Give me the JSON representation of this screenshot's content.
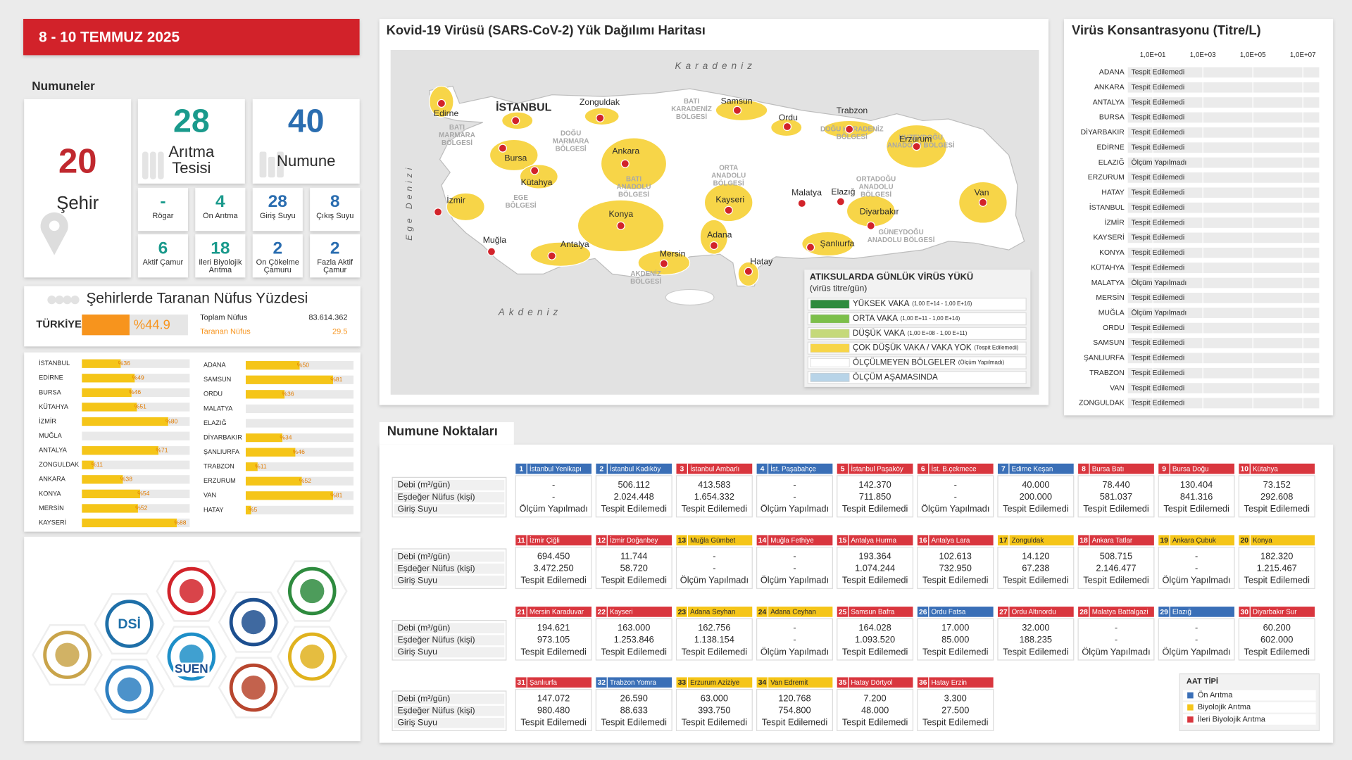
{
  "header": {
    "date": "8 - 10 TEMMUZ 2025"
  },
  "samples": {
    "title": "Numuneler",
    "city_count": 20,
    "city_label": "Şehir",
    "facility_count": 28,
    "facility_label": "Arıtma Tesisi",
    "sample_count": 40,
    "sample_label": "Numune",
    "breakdown": [
      {
        "value": "-",
        "label": "Rögar",
        "color": "#1a9a8c"
      },
      {
        "value": 4,
        "label": "Ön Arıtma",
        "color": "#1a9a8c"
      },
      {
        "value": 28,
        "label": "Giriş Suyu",
        "color": "#2a6db0"
      },
      {
        "value": 8,
        "label": "Çıkış Suyu",
        "color": "#2a6db0"
      },
      {
        "value": 6,
        "label": "Aktif Çamur",
        "color": "#1a9a8c"
      },
      {
        "value": 18,
        "label": "İleri Biyolojik Arıtma",
        "color": "#1a9a8c"
      },
      {
        "value": 2,
        "label": "Ön Çökelme Çamuru",
        "color": "#2a6db0"
      },
      {
        "value": 2,
        "label": "Fazla Aktif Çamur",
        "color": "#2a6db0"
      }
    ]
  },
  "population": {
    "title": "Şehirlerde Taranan Nüfus Yüzdesi",
    "country": "TÜRKİYE",
    "percent": 44.9,
    "percent_label": "%44.9",
    "total_label": "Toplam Nüfus",
    "total": "83.614.362",
    "screened_label": "Taranan Nüfus",
    "screened": "29.5"
  },
  "chart_data": [
    {
      "type": "bar",
      "orientation": "horizontal",
      "color": "#f5c518",
      "xlim": [
        0,
        100
      ],
      "categories": [
        "İSTANBUL",
        "EDİRNE",
        "BURSA",
        "KÜTAHYA",
        "İZMİR",
        "MUĞLA",
        "ANTALYA",
        "ZONGULDAK",
        "ANKARA",
        "KONYA",
        "MERSİN",
        "KAYSERİ"
      ],
      "values": [
        36,
        49,
        46,
        51,
        80,
        null,
        71,
        11,
        38,
        54,
        52,
        88
      ],
      "value_labels": [
        "%36",
        "%49",
        "%46",
        "%51",
        "%80",
        null,
        "%71",
        "%11",
        "%38",
        "%54",
        "%52",
        "%88"
      ]
    },
    {
      "type": "bar",
      "orientation": "horizontal",
      "color": "#f5c518",
      "xlim": [
        0,
        100
      ],
      "categories": [
        "ADANA",
        "SAMSUN",
        "ORDU",
        "MALATYA",
        "ELAZIĞ",
        "DİYARBAKIR",
        "ŞANLIURFA",
        "TRABZON",
        "ERZURUM",
        "VAN",
        "HATAY"
      ],
      "values": [
        50,
        81,
        36,
        null,
        null,
        34,
        46,
        11,
        52,
        81,
        5
      ],
      "value_labels": [
        "%50",
        "%81",
        "%36",
        null,
        null,
        "%34",
        "%46",
        "%11",
        "%52",
        "%81",
        "%5"
      ]
    },
    {
      "type": "status",
      "title": "Virüs Konsantrasyonu (Titre/L)",
      "log_scale": true,
      "xlim": [
        1,
        100000000
      ],
      "grid": true,
      "xticks": [
        {
          "value": 10,
          "label": "1,0E+01"
        },
        {
          "value": 1000,
          "label": "1,0E+03"
        },
        {
          "value": 100000,
          "label": "1,0E+05"
        },
        {
          "value": 10000000,
          "label": "1,0E+07"
        }
      ],
      "categories": [
        "ADANA",
        "ANKARA",
        "ANTALYA",
        "BURSA",
        "DİYARBAKIR",
        "EDİRNE",
        "ELAZIĞ",
        "ERZURUM",
        "HATAY",
        "İSTANBUL",
        "İZMİR",
        "KAYSERİ",
        "KONYA",
        "KÜTAHYA",
        "MALATYA",
        "MERSİN",
        "MUĞLA",
        "ORDU",
        "SAMSUN",
        "ŞANLIURFA",
        "TRABZON",
        "VAN",
        "ZONGULDAK"
      ],
      "statuses": [
        "Tespit Edilemedi",
        "Tespit Edilemedi",
        "Tespit Edilemedi",
        "Tespit Edilemedi",
        "Tespit Edilemedi",
        "Tespit Edilemedi",
        "Ölçüm Yapılmadı",
        "Tespit Edilemedi",
        "Tespit Edilemedi",
        "Tespit Edilemedi",
        "Tespit Edilemedi",
        "Tespit Edilemedi",
        "Tespit Edilemedi",
        "Tespit Edilemedi",
        "Ölçüm Yapılmadı",
        "Tespit Edilemedi",
        "Ölçüm Yapılmadı",
        "Tespit Edilemedi",
        "Tespit Edilemedi",
        "Tespit Edilemedi",
        "Tespit Edilemedi",
        "Tespit Edilemedi",
        "Tespit Edilemedi"
      ]
    }
  ],
  "map": {
    "title": "Kovid-19 Virüsü (SARS-CoV-2) Yük Dağılımı Haritası",
    "seas": [
      "Karadeniz",
      "Ege Denizi",
      "Akdeniz"
    ],
    "cities": [
      "Edirne",
      "İSTANBUL",
      "Zonguldak",
      "Samsun",
      "Ordu",
      "Trabzon",
      "Erzurum",
      "Bursa",
      "Kütahya",
      "Ankara",
      "İzmir",
      "Konya",
      "Kayseri",
      "Malatya",
      "Elazığ",
      "Van",
      "Diyarbakır",
      "Muğla",
      "Antalya",
      "Mersin",
      "Adana",
      "Hatay",
      "Şanlıurfa"
    ],
    "regions": [
      [
        "BATI",
        "MARMARA",
        "BÖLGESİ"
      ],
      [
        "DOĞU",
        "MARMARA",
        "BÖLGESİ"
      ],
      [
        "BATI",
        "KARADENİZ",
        "BÖLGESİ"
      ],
      [
        "DOĞU KARADENİZ",
        "BÖLGESİ"
      ],
      [
        "KUZEYDOĞU",
        "ANADOLU BÖLGESİ"
      ],
      [
        "EGE",
        "BÖLGESİ"
      ],
      [
        "BATI",
        "ANADOLU",
        "BÖLGESİ"
      ],
      [
        "ORTA",
        "ANADOLU",
        "BÖLGESİ"
      ],
      [
        "ORTADOĞU",
        "ANADOLU",
        "BÖLGESİ"
      ],
      [
        "GÜNEYDOĞU",
        "ANADOLU BÖLGESİ"
      ],
      [
        "AKDENİZ",
        "BÖLGESİ"
      ]
    ],
    "legend": {
      "title": "ATIKSULARDA GÜNLÜK VİRÜS YÜKÜ",
      "subtitle": "(virüs titre/gün)",
      "items": [
        {
          "name": "YÜKSEK VAKA",
          "detail": "(1,00 E+14 - 1,00 E+16)",
          "color": "#2e8b3e"
        },
        {
          "name": "ORTA VAKA",
          "detail": "(1,00 E+11 - 1,00 E+14)",
          "color": "#7cbf4a"
        },
        {
          "name": "DÜŞÜK VAKA",
          "detail": "(1,00 E+08 - 1,00 E+11)",
          "color": "#c5d97a"
        },
        {
          "name": "ÇOK DÜŞÜK VAKA / VAKA YOK",
          "detail": "(Tespit Edilemedi)",
          "color": "#f7d548"
        },
        {
          "name": "ÖLÇÜLMEYEN BÖLGELER",
          "detail": "(Ölçüm Yapılmadı)",
          "color": "#ffffff"
        },
        {
          "name": "ÖLÇÜM AŞAMASINDA",
          "detail": null,
          "color": "#b8d4e8"
        }
      ]
    }
  },
  "points": {
    "title": "Numune Noktaları",
    "row_labels": [
      "Debi (m³/gün)",
      "Eşdeğer Nüfus (kişi)",
      "Giriş Suyu"
    ],
    "items": [
      {
        "no": 1,
        "name": "İstanbul Yenikapı",
        "color": "#3a6fb7",
        "flow": "-",
        "population": "-",
        "result": "Ölçüm Yapılmadı"
      },
      {
        "no": 2,
        "name": "İstanbul Kadıköy",
        "color": "#3a6fb7",
        "flow": "506.112",
        "population": "2.024.448",
        "result": "Tespit Edilemedi"
      },
      {
        "no": 3,
        "name": "İstanbul Ambarlı",
        "color": "#d9363e",
        "flow": "413.583",
        "population": "1.654.332",
        "result": "Tespit Edilemedi"
      },
      {
        "no": 4,
        "name": "İst. Paşabahçe",
        "color": "#3a6fb7",
        "flow": "-",
        "population": "-",
        "result": "Ölçüm Yapılmadı"
      },
      {
        "no": 5,
        "name": "İstanbul Paşaköy",
        "color": "#d9363e",
        "flow": "142.370",
        "population": "711.850",
        "result": "Tespit Edilemedi"
      },
      {
        "no": 6,
        "name": "İst. B.çekmece",
        "color": "#d9363e",
        "flow": "-",
        "population": "-",
        "result": "Ölçüm Yapılmadı"
      },
      {
        "no": 7,
        "name": "Edirne Keşan",
        "color": "#3a6fb7",
        "flow": "40.000",
        "population": "200.000",
        "result": "Tespit Edilemedi"
      },
      {
        "no": 8,
        "name": "Bursa Batı",
        "color": "#d9363e",
        "flow": "78.440",
        "population": "581.037",
        "result": "Tespit Edilemedi"
      },
      {
        "no": 9,
        "name": "Bursa Doğu",
        "color": "#d9363e",
        "flow": "130.404",
        "population": "841.316",
        "result": "Tespit Edilemedi"
      },
      {
        "no": 10,
        "name": "Kütahya",
        "color": "#d9363e",
        "flow": "73.152",
        "population": "292.608",
        "result": "Tespit Edilemedi"
      },
      {
        "no": 11,
        "name": "İzmir Çiğli",
        "color": "#d9363e",
        "flow": "694.450",
        "population": "3.472.250",
        "result": "Tespit Edilemedi"
      },
      {
        "no": 12,
        "name": "İzmir Doğanbey",
        "color": "#d9363e",
        "flow": "11.744",
        "population": "58.720",
        "result": "Tespit Edilemedi"
      },
      {
        "no": 13,
        "name": "Muğla Gümbet",
        "color": "#f5c518",
        "flow": "-",
        "population": "-",
        "result": "Ölçüm Yapılmadı"
      },
      {
        "no": 14,
        "name": "Muğla Fethiye",
        "color": "#d9363e",
        "flow": "-",
        "population": "-",
        "result": "Ölçüm Yapılmadı"
      },
      {
        "no": 15,
        "name": "Antalya Hurma",
        "color": "#d9363e",
        "flow": "193.364",
        "population": "1.074.244",
        "result": "Tespit Edilemedi"
      },
      {
        "no": 16,
        "name": "Antalya Lara",
        "color": "#d9363e",
        "flow": "102.613",
        "population": "732.950",
        "result": "Tespit Edilemedi"
      },
      {
        "no": 17,
        "name": "Zonguldak",
        "color": "#f5c518",
        "flow": "14.120",
        "population": "67.238",
        "result": "Tespit Edilemedi"
      },
      {
        "no": 18,
        "name": "Ankara Tatlar",
        "color": "#d9363e",
        "flow": "508.715",
        "population": "2.146.477",
        "result": "Tespit Edilemedi"
      },
      {
        "no": 19,
        "name": "Ankara Çubuk",
        "color": "#f5c518",
        "flow": "-",
        "population": "-",
        "result": "Ölçüm Yapılmadı"
      },
      {
        "no": 20,
        "name": "Konya",
        "color": "#f5c518",
        "flow": "182.320",
        "population": "1.215.467",
        "result": "Tespit Edilemedi"
      },
      {
        "no": 21,
        "name": "Mersin Karaduvar",
        "color": "#d9363e",
        "flow": "194.621",
        "population": "973.105",
        "result": "Tespit Edilemedi"
      },
      {
        "no": 22,
        "name": "Kayseri",
        "color": "#d9363e",
        "flow": "163.000",
        "population": "1.253.846",
        "result": "Tespit Edilemedi"
      },
      {
        "no": 23,
        "name": "Adana Seyhan",
        "color": "#f5c518",
        "flow": "162.756",
        "population": "1.138.154",
        "result": "Tespit Edilemedi"
      },
      {
        "no": 24,
        "name": "Adana Ceyhan",
        "color": "#f5c518",
        "flow": "-",
        "population": "-",
        "result": "Ölçüm Yapılmadı"
      },
      {
        "no": 25,
        "name": "Samsun Bafra",
        "color": "#d9363e",
        "flow": "164.028",
        "population": "1.093.520",
        "result": "Tespit Edilemedi"
      },
      {
        "no": 26,
        "name": "Ordu Fatsa",
        "color": "#3a6fb7",
        "flow": "17.000",
        "population": "85.000",
        "result": "Tespit Edilemedi"
      },
      {
        "no": 27,
        "name": "Ordu Altınordu",
        "color": "#d9363e",
        "flow": "32.000",
        "population": "188.235",
        "result": "Tespit Edilemedi"
      },
      {
        "no": 28,
        "name": "Malatya Battalgazi",
        "color": "#d9363e",
        "flow": "-",
        "population": "-",
        "result": "Ölçüm Yapılmadı"
      },
      {
        "no": 29,
        "name": "Elazığ",
        "color": "#3a6fb7",
        "flow": "-",
        "population": "-",
        "result": "Ölçüm Yapılmadı"
      },
      {
        "no": 30,
        "name": "Diyarbakır Sur",
        "color": "#d9363e",
        "flow": "60.200",
        "population": "602.000",
        "result": "Tespit Edilemedi"
      },
      {
        "no": 31,
        "name": "Şanlıurfa",
        "color": "#d9363e",
        "flow": "147.072",
        "population": "980.480",
        "result": "Tespit Edilemedi"
      },
      {
        "no": 32,
        "name": "Trabzon Yomra",
        "color": "#3a6fb7",
        "flow": "26.590",
        "population": "88.633",
        "result": "Tespit Edilemedi"
      },
      {
        "no": 33,
        "name": "Erzurum Aziziye",
        "color": "#f5c518",
        "flow": "63.000",
        "population": "393.750",
        "result": "Tespit Edilemedi"
      },
      {
        "no": 34,
        "name": "Van Edremit",
        "color": "#f5c518",
        "flow": "120.768",
        "population": "754.800",
        "result": "Tespit Edilemedi"
      },
      {
        "no": 35,
        "name": "Hatay Dörtyol",
        "color": "#d9363e",
        "flow": "7.200",
        "population": "48.000",
        "result": "Tespit Edilemedi"
      },
      {
        "no": 36,
        "name": "Hatay Erzin",
        "color": "#d9363e",
        "flow": "3.300",
        "population": "27.500",
        "result": "Tespit Edilemedi"
      }
    ],
    "legend": {
      "title": "AAT TİPİ",
      "items": [
        {
          "name": "Ön Arıtma",
          "color": "#3a6fb7"
        },
        {
          "name": "Biyolojik Arıtma",
          "color": "#f5c518"
        },
        {
          "name": "İleri Biyolojik Arıtma",
          "color": "#d9363e"
        }
      ]
    }
  },
  "logos": [
    "DSİ",
    "SUEN"
  ]
}
